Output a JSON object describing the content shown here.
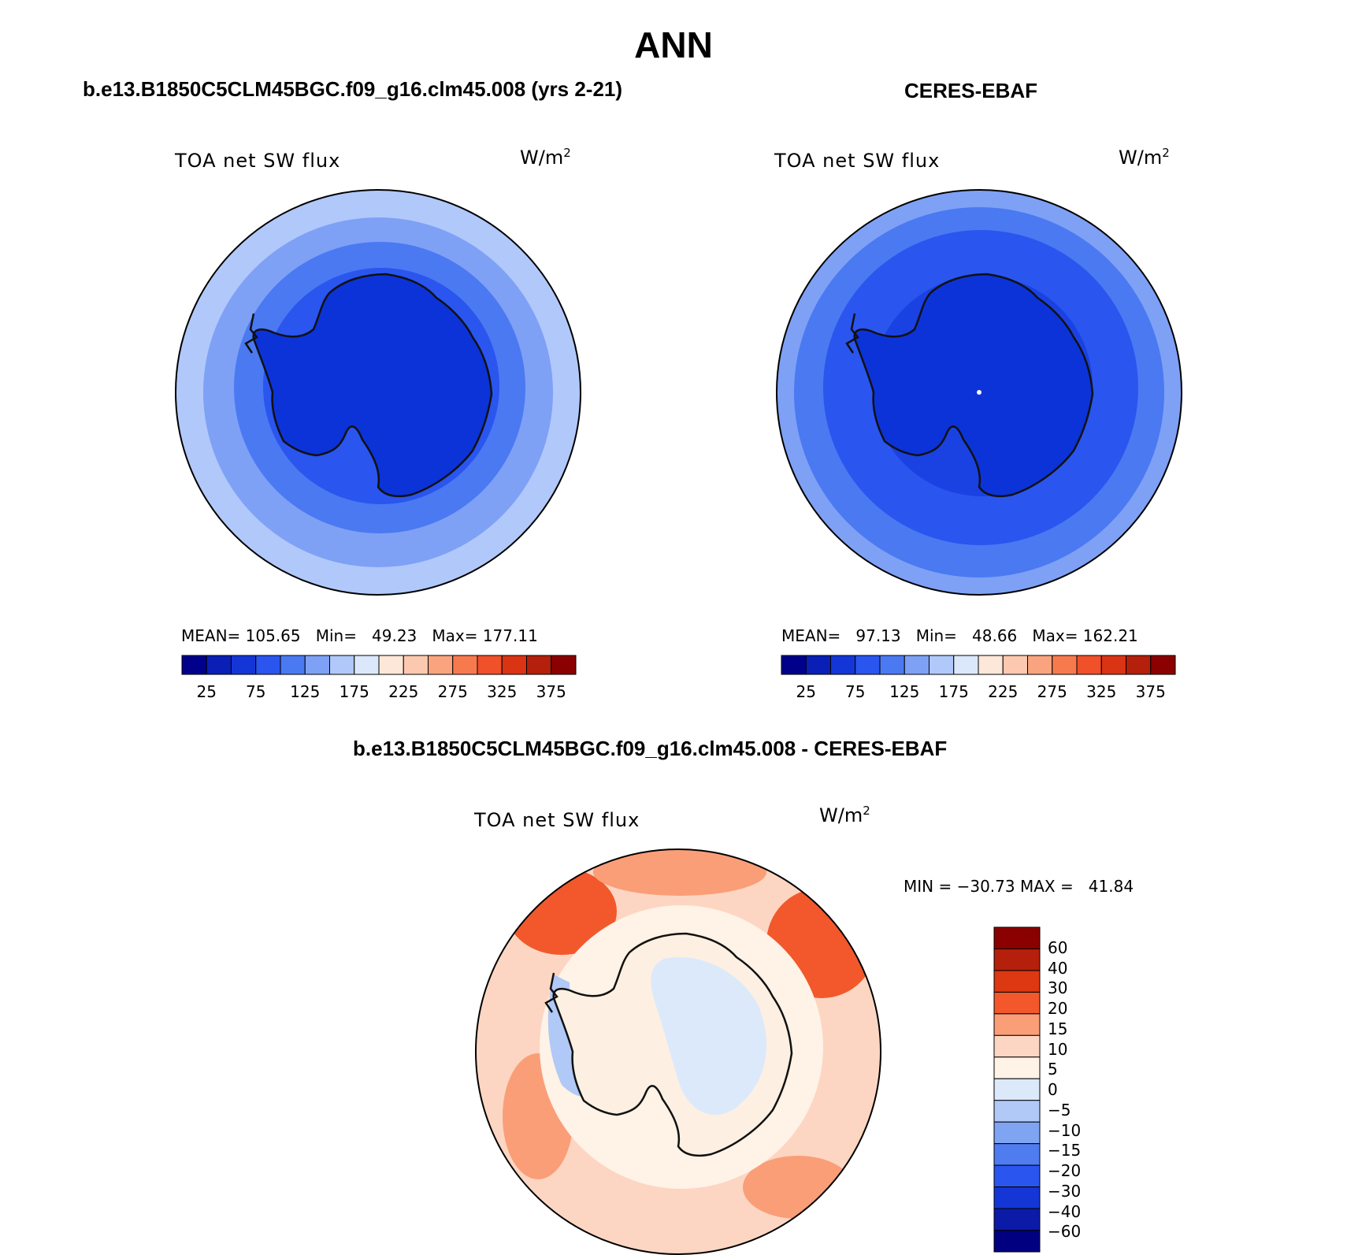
{
  "title": "ANN",
  "panels": [
    {
      "subtitle": "b.e13.B1850C5CLM45BGC.f09_g16.clm45.008 (yrs 2-21)",
      "variable": "TOA net SW flux",
      "unit_base": "W/m",
      "unit_exp": "2",
      "stats": "MEAN= 105.65   Min=   49.23   Max= 177.11"
    },
    {
      "subtitle": "CERES-EBAF",
      "variable": "TOA net SW flux",
      "unit_base": "W/m",
      "unit_exp": "2",
      "stats": "MEAN=   97.13   Min=   48.66   Max= 162.21"
    },
    {
      "subtitle": "b.e13.B1850C5CLM45BGC.f09_g16.clm45.008 - CERES-EBAF",
      "variable": "TOA net SW flux",
      "unit_base": "W/m",
      "unit_exp": "2",
      "stats": "MIN = −30.73 MAX =   41.84"
    }
  ],
  "colorbar_abs": {
    "colors": [
      "#00008b",
      "#0a1fb5",
      "#1536d6",
      "#2a55ee",
      "#4a79f2",
      "#7ea1f6",
      "#b1c8fa",
      "#dbe8fc",
      "#fde7d8",
      "#fcc9b0",
      "#faa47f",
      "#f77a4e",
      "#f0502a",
      "#da3414",
      "#b4200c",
      "#8b0000"
    ],
    "tick_labels": [
      "25",
      "75",
      "125",
      "175",
      "225",
      "275",
      "325",
      "375"
    ]
  },
  "colorbar_diff": {
    "colors_top_to_bottom": [
      "#8b0000",
      "#b4200c",
      "#dc3812",
      "#f2582c",
      "#fa9e78",
      "#fcd6c2",
      "#fff2e6",
      "#dbe9fb",
      "#b0c9f7",
      "#7ea4f2",
      "#4f7df0",
      "#2a55ee",
      "#1536d6",
      "#0b1ba8",
      "#000080"
    ],
    "tick_labels": [
      "60",
      "40",
      "30",
      "20",
      "15",
      "10",
      "5",
      "0",
      "−5",
      "−10",
      "−15",
      "−20",
      "−30",
      "−40",
      "−60"
    ]
  },
  "map_colors": {
    "antarctica_model": "#0c33d8",
    "antarctica_obs": "#0c33d8",
    "coastline": "#111111",
    "diff_land": "#fdf0e2",
    "diff_land_cool": "#dbe9fb"
  }
}
